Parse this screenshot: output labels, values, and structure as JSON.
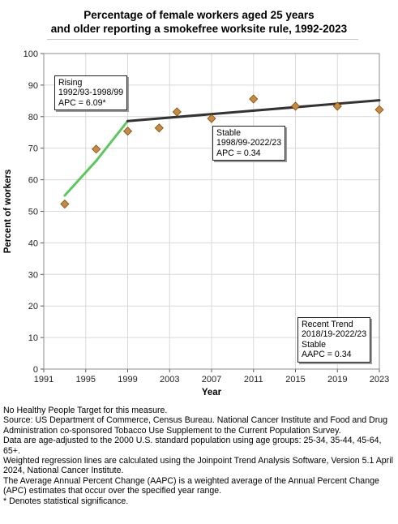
{
  "title": {
    "line1": "Percentage of female workers aged 25 years",
    "line2": "and older reporting a smokefree worksite rule, 1992-2023"
  },
  "chart_data": {
    "type": "scatter",
    "title": "Percentage of female workers aged 25 years and older reporting a smokefree worksite rule, 1992-2023",
    "xlabel": "Year",
    "ylabel": "Percent of workers",
    "xlim": [
      1991,
      2023
    ],
    "ylim": [
      0,
      100
    ],
    "x_ticks": [
      "1991",
      "1995",
      "1999",
      "2003",
      "2007",
      "2011",
      "2015",
      "2019",
      "2023"
    ],
    "y_ticks": [
      "0",
      "10",
      "20",
      "30",
      "40",
      "50",
      "60",
      "70",
      "80",
      "90",
      "100"
    ],
    "grid": true,
    "observed": {
      "x": [
        1993,
        1996,
        1999,
        2002,
        2003.7,
        2007,
        2011,
        2015,
        2019,
        2023
      ],
      "y": [
        52.3,
        69.7,
        75.4,
        76.4,
        81.5,
        79.4,
        85.6,
        83.3,
        83.3,
        82.2
      ]
    },
    "trend_segments": [
      {
        "x": [
          1993,
          1996,
          1999
        ],
        "y": [
          55.0,
          66.0,
          78.6
        ],
        "color": "#5cc85c"
      },
      {
        "x": [
          1999,
          2023
        ],
        "y": [
          78.6,
          85.2
        ],
        "color": "#333333"
      }
    ],
    "annotations": [
      {
        "lines": [
          "Rising",
          "1992/93-1998/99",
          "APC =  6.09*"
        ]
      },
      {
        "lines": [
          "Stable",
          "1998/99-2022/23",
          "APC =  0.34"
        ]
      },
      {
        "lines": [
          "Recent Trend",
          "2018/19-2022/23",
          "Stable",
          "AAPC =  0.34"
        ]
      }
    ],
    "colors": {
      "marker_fill": "#c98a3e",
      "marker_stroke": "#7a4c16",
      "plot_background": "#ffffff",
      "grid": "#d9d9d9"
    }
  },
  "footnotes": [
    "No Healthy People Target for this measure.",
    "Source: US Department of Commerce, Census Bureau. National Cancer Institute and Food and Drug Administration co-sponsored Tobacco Use Supplement to the Current Population Survey.",
    "Data are age-adjusted to the 2000 U.S. standard population using age groups: 25-34, 35-44, 45-64, 65+.",
    "Weighted regression lines are calculated using the Joinpoint Trend Analysis Software, Version 5.1 April 2024, National Cancer Institute.",
    "The Average Annual Percent Change (AAPC) is a weighted average of the Annual Percent Change (APC) estimates that occur over the specified year range.",
    "* Denotes statistical significance."
  ]
}
